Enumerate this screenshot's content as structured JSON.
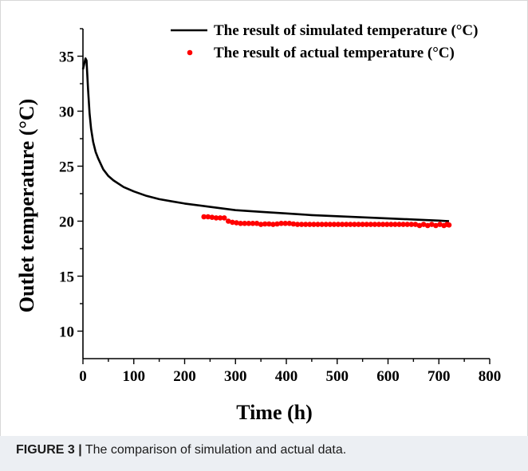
{
  "caption": {
    "label": "FIGURE 3 |",
    "text": " The comparison of simulation and actual data."
  },
  "chart_data": {
    "type": "line",
    "xlabel": "Time (h)",
    "ylabel": "Outlet temperature  (°C)",
    "xlim": [
      0,
      800
    ],
    "ylim": [
      7.5,
      37.5
    ],
    "xticks": [
      0,
      100,
      200,
      300,
      400,
      500,
      600,
      700,
      800
    ],
    "yticks": [
      10,
      15,
      20,
      25,
      30,
      35
    ],
    "grid": false,
    "legend_position": "top-right",
    "series": [
      {
        "name": "The result of simulated temperature  (°C)",
        "kind": "line",
        "color": "#000000",
        "x": [
          0,
          3,
          5,
          7,
          10,
          13,
          16,
          20,
          25,
          30,
          40,
          50,
          60,
          80,
          100,
          125,
          150,
          175,
          200,
          250,
          300,
          350,
          400,
          450,
          500,
          550,
          600,
          650,
          700,
          720
        ],
        "y": [
          33.8,
          34.4,
          34.8,
          34.6,
          32.0,
          29.8,
          28.4,
          27.2,
          26.3,
          25.7,
          24.7,
          24.1,
          23.7,
          23.1,
          22.7,
          22.3,
          22.0,
          21.8,
          21.6,
          21.3,
          21.0,
          20.85,
          20.7,
          20.55,
          20.45,
          20.35,
          20.25,
          20.15,
          20.05,
          20.0
        ]
      },
      {
        "name": "The result of actual temperature  (°C)",
        "kind": "scatter",
        "color": "#ff0000",
        "x": [
          238,
          246,
          254,
          262,
          270,
          278,
          286,
          294,
          302,
          310,
          318,
          326,
          334,
          342,
          350,
          358,
          366,
          374,
          382,
          390,
          398,
          406,
          414,
          422,
          430,
          438,
          446,
          454,
          462,
          470,
          478,
          486,
          494,
          502,
          510,
          518,
          526,
          534,
          542,
          550,
          558,
          566,
          574,
          582,
          590,
          598,
          606,
          614,
          622,
          630,
          638,
          646,
          654,
          662,
          670,
          678,
          686,
          694,
          702,
          710,
          716,
          720
        ],
        "y": [
          20.4,
          20.4,
          20.35,
          20.3,
          20.3,
          20.3,
          20.0,
          19.9,
          19.85,
          19.8,
          19.8,
          19.8,
          19.8,
          19.8,
          19.7,
          19.75,
          19.75,
          19.7,
          19.75,
          19.8,
          19.8,
          19.8,
          19.75,
          19.7,
          19.7,
          19.7,
          19.7,
          19.7,
          19.7,
          19.7,
          19.7,
          19.7,
          19.7,
          19.7,
          19.7,
          19.7,
          19.7,
          19.7,
          19.7,
          19.7,
          19.7,
          19.7,
          19.7,
          19.7,
          19.7,
          19.7,
          19.7,
          19.7,
          19.7,
          19.7,
          19.7,
          19.7,
          19.7,
          19.6,
          19.7,
          19.6,
          19.7,
          19.6,
          19.7,
          19.6,
          19.7,
          19.65
        ]
      }
    ]
  }
}
